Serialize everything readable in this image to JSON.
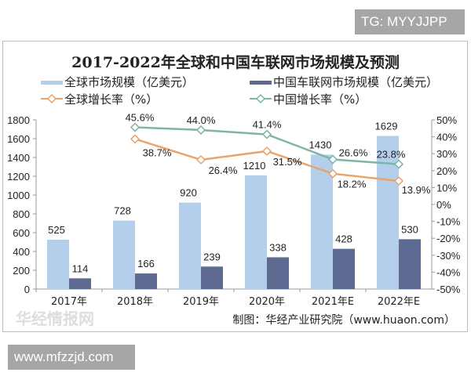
{
  "watermarks": {
    "top": "TG: MYYJJPP",
    "bottom": "www.mfzzjd.com",
    "logo": "华经情报网 huaon.com"
  },
  "chart_data": {
    "type": "bar+line",
    "title": "2017-2022年全球和中国车联网市场规模及预测",
    "categories": [
      "2017年",
      "2018年",
      "2019年",
      "2020年",
      "2021年E",
      "2022年E"
    ],
    "bar_series": [
      {
        "name": "全球市场规模（亿美元）",
        "color": "#b4cfeb",
        "values": [
          525,
          728,
          920,
          1210,
          1430,
          1629
        ]
      },
      {
        "name": "中国车联网市场规模（亿美元）",
        "color": "#5d6a91",
        "values": [
          114,
          166,
          239,
          338,
          428,
          530
        ]
      }
    ],
    "line_series": [
      {
        "name": "全球增长率（%）",
        "color": "#e8a46a",
        "values": [
          null,
          38.7,
          26.4,
          31.5,
          18.2,
          13.9
        ]
      },
      {
        "name": "中国增长率（%）",
        "color": "#7fb5a6",
        "values": [
          null,
          45.6,
          44.0,
          41.4,
          26.6,
          23.8
        ]
      }
    ],
    "y_left": {
      "ylim": [
        0,
        1800
      ],
      "ticks": [
        0,
        200,
        400,
        600,
        800,
        1000,
        1200,
        1400,
        1600,
        1800
      ]
    },
    "y_right": {
      "ylim": [
        -50,
        50
      ],
      "ticks": [
        "-50%",
        "-40%",
        "-30%",
        "-20%",
        "-10%",
        "0%",
        "10%",
        "20%",
        "30%",
        "40%",
        "50%"
      ]
    },
    "legend_position": "top",
    "grid": false,
    "source": "制图：华经产业研究院（www.huaon.com）"
  }
}
